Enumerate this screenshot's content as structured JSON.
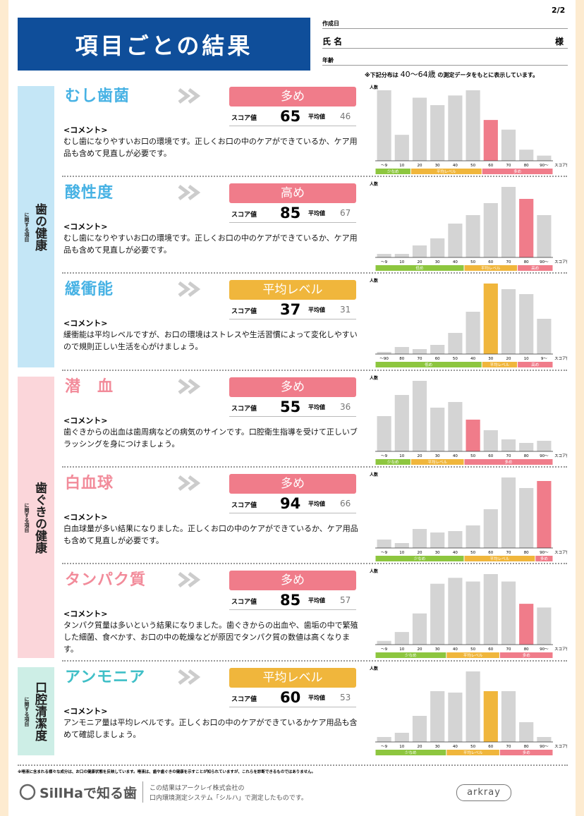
{
  "header": {
    "page": "2/2",
    "title": "項目ごとの結果",
    "date_label": "作成日",
    "name_label": "氏 名",
    "honorific": "様",
    "age_label": "年齢",
    "note_prefix": "※下記分布は",
    "age_range": "40〜64歳",
    "note_suffix": "の測定データをもとに表示しています。"
  },
  "sections": [
    {
      "label": "歯の健康",
      "sub": "に関する項目",
      "bg": "#c4e6f6",
      "color": "#47b2e4",
      "items": [
        {
          "name": "むし歯菌",
          "level": "多め",
          "level_color": "#f07c8a",
          "score_label": "スコア値",
          "score": 65,
          "avg_label": "平均値",
          "avg": 46,
          "comment_label": "<コメント>",
          "comment": "むし歯になりやすいお口の環境です。正しくお口の中のケアができているか、ケア用品も含めて見直しが必要です。",
          "chart": {
            "y_label": "人数",
            "x_label": "スコア値",
            "categories": [
              "〜9",
              "10",
              "20",
              "30",
              "40",
              "50",
              "60",
              "70",
              "80",
              "90〜"
            ],
            "values": [
              95,
              35,
              85,
              75,
              88,
              95,
              55,
              42,
              15,
              7
            ],
            "highlight": 6,
            "bands": [
              {
                "label": "少なめ",
                "count": 2,
                "color": "#8dc63f"
              },
              {
                "label": "平均レベル",
                "count": 4,
                "color": "#f0b63c"
              },
              {
                "label": "多め",
                "count": 4,
                "color": "#f07c8a"
              }
            ]
          }
        },
        {
          "name": "酸性度",
          "level": "高め",
          "level_color": "#f07c8a",
          "score_label": "スコア値",
          "score": 85,
          "avg_label": "平均値",
          "avg": 67,
          "comment_label": "<コメント>",
          "comment": "むし歯になりやすいお口の環境です。正しくお口の中のケアができているか、ケア用品も含めて見直しが必要です。",
          "chart": {
            "y_label": "人数",
            "x_label": "スコア値",
            "categories": [
              "〜9",
              "10",
              "20",
              "30",
              "40",
              "50",
              "60",
              "70",
              "80",
              "90〜"
            ],
            "values": [
              5,
              5,
              17,
              27,
              48,
              60,
              77,
              100,
              83,
              60
            ],
            "highlight": 8,
            "bands": [
              {
                "label": "低め",
                "count": 5,
                "color": "#8dc63f"
              },
              {
                "label": "平均レベル",
                "count": 3,
                "color": "#f0b63c"
              },
              {
                "label": "高め",
                "count": 2,
                "color": "#f07c8a"
              }
            ]
          }
        },
        {
          "name": "緩衝能",
          "level": "平均レベル",
          "level_color": "#f0b63c",
          "score_label": "スコア値",
          "score": 37,
          "avg_label": "平均値",
          "avg": 31,
          "comment_label": "<コメント>",
          "comment": "緩衝能は平均レベルですが、お口の環境はストレスや生活習慣によって変化しやすいので規則正しい生活を心がけましょう。",
          "chart": {
            "y_label": "人数",
            "x_label": "スコア値",
            "categories": [
              "〜90",
              "80",
              "70",
              "60",
              "50",
              "40",
              "30",
              "20",
              "10",
              "9〜"
            ],
            "values": [
              3,
              10,
              7,
              13,
              30,
              60,
              100,
              92,
              85,
              50
            ],
            "highlight": 6,
            "bands": [
              {
                "label": "低め",
                "count": 6,
                "color": "#8dc63f"
              },
              {
                "label": "平均レベル",
                "count": 2,
                "color": "#f0b63c"
              },
              {
                "label": "高め",
                "count": 2,
                "color": "#f07c8a"
              }
            ]
          }
        }
      ]
    },
    {
      "label": "歯ぐきの健康",
      "sub": "に関する項目",
      "bg": "#fbd6da",
      "color": "#f28b9a",
      "items": [
        {
          "name": "潜　血",
          "level": "多め",
          "level_color": "#f07c8a",
          "score_label": "スコア値",
          "score": 55,
          "avg_label": "平均値",
          "avg": 36,
          "comment_label": "<コメント>",
          "comment": "歯ぐきからの出血は歯周病などの病気のサインです。口腔衛生指導を受けて正しいブラッシングを身につけましょう。",
          "chart": {
            "y_label": "人数",
            "x_label": "スコア値",
            "categories": [
              "〜9",
              "10",
              "20",
              "30",
              "40",
              "50",
              "60",
              "70",
              "80",
              "90〜"
            ],
            "values": [
              50,
              80,
              100,
              62,
              70,
              45,
              30,
              17,
              12,
              15
            ],
            "highlight": 5,
            "bands": [
              {
                "label": "少なめ",
                "count": 2,
                "color": "#8dc63f"
              },
              {
                "label": "平均レベル",
                "count": 3,
                "color": "#f0b63c"
              },
              {
                "label": "多め",
                "count": 5,
                "color": "#f07c8a"
              }
            ]
          }
        },
        {
          "name": "白血球",
          "level": "多め",
          "level_color": "#f07c8a",
          "score_label": "スコア値",
          "score": 94,
          "avg_label": "平均値",
          "avg": 66,
          "comment_label": "<コメント>",
          "comment": "白血球量が多い結果になりました。正しくお口の中のケアができているか、ケア用品も含めて見直しが必要です。",
          "chart": {
            "y_label": "人数",
            "x_label": "スコア値",
            "categories": [
              "〜9",
              "10",
              "20",
              "30",
              "40",
              "50",
              "60",
              "70",
              "80",
              "90〜"
            ],
            "values": [
              12,
              7,
              27,
              22,
              24,
              32,
              55,
              100,
              85,
              95
            ],
            "highlight": 9,
            "bands": [
              {
                "label": "少なめ",
                "count": 5,
                "color": "#8dc63f"
              },
              {
                "label": "平均レベル",
                "count": 4,
                "color": "#f0b63c"
              },
              {
                "label": "多め",
                "count": 1,
                "color": "#f07c8a"
              }
            ]
          }
        },
        {
          "name": "タンパク質",
          "level": "多め",
          "level_color": "#f07c8a",
          "score_label": "スコア値",
          "score": 85,
          "avg_label": "平均値",
          "avg": 57,
          "comment_label": "<コメント>",
          "comment": "タンパク質量は多いという結果になりました。歯ぐきからの出血や、歯垢の中で繁殖した細菌、食べかす、お口の中の乾燥などが原因でタンパク質の数値は高くなります。",
          "chart": {
            "y_label": "人数",
            "x_label": "スコア値",
            "categories": [
              "〜9",
              "10",
              "20",
              "30",
              "40",
              "50",
              "60",
              "70",
              "80",
              "90〜"
            ],
            "values": [
              5,
              17,
              42,
              82,
              90,
              85,
              95,
              85,
              55,
              50
            ],
            "highlight": 8,
            "bands": [
              {
                "label": "少なめ",
                "count": 4,
                "color": "#8dc63f"
              },
              {
                "label": "平均レベル",
                "count": 3,
                "color": "#f0b63c"
              },
              {
                "label": "多め",
                "count": 3,
                "color": "#f07c8a"
              }
            ]
          }
        }
      ]
    },
    {
      "label": "口腔清潔度",
      "sub": "に関する項目",
      "bg": "#cdeee6",
      "color": "#3fbfc7",
      "items": [
        {
          "name": "アンモニア",
          "level": "平均レベル",
          "level_color": "#f0b63c",
          "score_label": "スコア値",
          "score": 60,
          "avg_label": "平均値",
          "avg": 53,
          "comment_label": "<コメント>",
          "comment": "アンモニア量は平均レベルです。正しくお口の中のケアができているかケア用品も含めて確認しましょう。",
          "chart": {
            "y_label": "人数",
            "x_label": "スコア値",
            "categories": [
              "〜9",
              "10",
              "20",
              "30",
              "40",
              "50",
              "60",
              "70",
              "80",
              "90〜"
            ],
            "values": [
              7,
              13,
              37,
              72,
              70,
              100,
              72,
              72,
              28,
              7
            ],
            "highlight": 6,
            "bands": [
              {
                "label": "少なめ",
                "count": 4,
                "color": "#8dc63f"
              },
              {
                "label": "平均レベル",
                "count": 3,
                "color": "#f0b63c"
              },
              {
                "label": "多め",
                "count": 3,
                "color": "#f07c8a"
              }
            ]
          }
        }
      ]
    }
  ],
  "footer": {
    "disclaimer": "※唾液に含まれる様々な成分は、お口の健康状態を反映しています。唾液は、歯や歯ぐきの健康を示すことが知られていますが、これらを診断できるものではありません。",
    "logo": "SillHaで知る歯",
    "line1": "この結果はアークレイ株式会社の",
    "line2": "口内環境測定システム「シルハ」で測定したものです。",
    "brand": "arkray"
  }
}
